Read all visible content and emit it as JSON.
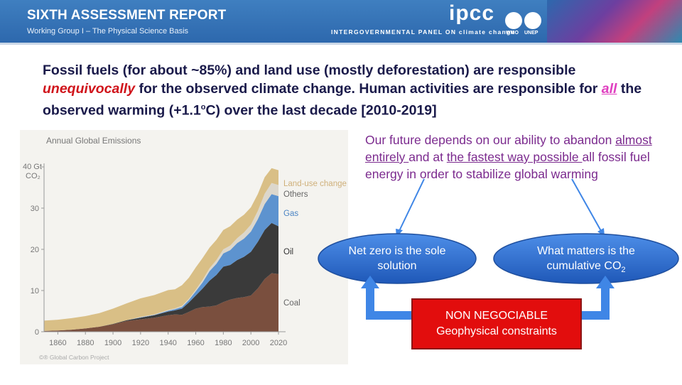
{
  "header": {
    "title": "SIXTH ASSESSMENT REPORT",
    "subtitle": "Working Group I – The Physical Science Basis",
    "logo": "ipcc",
    "tagline": "INTERGOVERNMENTAL PANEL ON climate change",
    "who": "WMO",
    "unep": "UNEP"
  },
  "headline": {
    "p1": "Fossil fuels (for about ~85%) and land use (mostly deforestation) are responsible ",
    "em1": "unequivocally",
    "p2": " for the observed climate change. Human activities are responsible for ",
    "em2": "all",
    "p3": " the observed warming (+1.1",
    "sup": "o",
    "p4": "C) over the last decade [2010-2019]"
  },
  "note": {
    "t1": "Our future depends on our ability to abandon ",
    "u1": "almost entirely ",
    "t2": "and at ",
    "u2": "the fastest way possible ",
    "t3": "all fossil fuel energy in order to stabilize global warming"
  },
  "ellipses": {
    "left": "Net zero is the sole solution",
    "right_a": "What matters is the cumulative CO",
    "right_sub": "2"
  },
  "constraint_box": {
    "line1": "NON NEGOCIABLE",
    "line2": "Geophysical constraints"
  },
  "colors": {
    "header_blue": "#2d68ad",
    "coal": "#7a4f3e",
    "oil": "#3a3a3a",
    "gas": "#5d93cf",
    "others": "#dcd7cc",
    "landuse": "#d9bf86",
    "ellipse": "#2e6fd0",
    "arrow": "#3f86e6",
    "red_box": "#e20d0d",
    "purple": "#7b2a8e"
  },
  "chart_data": {
    "type": "area",
    "title": "Annual Global Emissions",
    "ylabel": "40 Gt CO₂",
    "unit_top": "40 Gt",
    "unit_bottom": "CO₂",
    "ylim": [
      0,
      40
    ],
    "yticks": [
      0,
      10,
      20,
      30
    ],
    "xlim": [
      1850,
      2020
    ],
    "xticks": [
      1860,
      1880,
      1900,
      1920,
      1940,
      1960,
      1980,
      2000,
      2020
    ],
    "x": [
      1850,
      1860,
      1870,
      1880,
      1890,
      1900,
      1910,
      1920,
      1930,
      1940,
      1945,
      1950,
      1955,
      1960,
      1965,
      1970,
      1975,
      1980,
      1985,
      1990,
      1995,
      2000,
      2005,
      2010,
      2015,
      2020
    ],
    "stack_order": [
      "Coal",
      "Oil",
      "Gas",
      "Others",
      "Land-use change"
    ],
    "series": [
      {
        "name": "Coal",
        "values": [
          0.2,
          0.3,
          0.5,
          0.8,
          1.2,
          1.8,
          2.6,
          3.0,
          3.4,
          4.0,
          4.2,
          4.1,
          4.8,
          5.6,
          6.0,
          6.1,
          6.4,
          7.2,
          7.8,
          8.2,
          8.4,
          8.8,
          10.5,
          12.8,
          14.2,
          14.0
        ]
      },
      {
        "name": "Oil",
        "values": [
          0.0,
          0.0,
          0.0,
          0.0,
          0.0,
          0.1,
          0.2,
          0.4,
          0.6,
          0.9,
          1.0,
          1.5,
          2.3,
          3.2,
          4.5,
          6.3,
          7.4,
          8.6,
          8.4,
          9.2,
          9.8,
          10.6,
          11.3,
          11.9,
          12.2,
          11.6
        ]
      },
      {
        "name": "Gas",
        "values": [
          0.0,
          0.0,
          0.0,
          0.0,
          0.0,
          0.0,
          0.0,
          0.1,
          0.1,
          0.2,
          0.3,
          0.4,
          0.6,
          1.0,
          1.5,
          2.3,
          2.7,
          3.2,
          3.6,
          4.1,
          4.4,
          4.9,
          5.5,
          6.3,
          7.0,
          7.3
        ]
      },
      {
        "name": "Others",
        "values": [
          0.0,
          0.0,
          0.0,
          0.0,
          0.0,
          0.0,
          0.0,
          0.1,
          0.1,
          0.2,
          0.2,
          0.3,
          0.3,
          0.4,
          0.6,
          0.7,
          0.9,
          1.0,
          1.1,
          1.2,
          1.5,
          1.7,
          2.0,
          2.5,
          2.7,
          2.7
        ]
      },
      {
        "name": "Land-use change",
        "values": [
          2.5,
          2.6,
          2.8,
          3.0,
          3.3,
          3.7,
          4.1,
          4.5,
          4.7,
          4.8,
          4.6,
          5.0,
          5.1,
          5.4,
          5.3,
          5.0,
          4.9,
          4.7,
          4.7,
          4.5,
          4.3,
          4.2,
          4.1,
          4.0,
          3.6,
          3.6
        ]
      }
    ],
    "legend_placement": "right, inline labels",
    "credit": "©® Global Carbon Project",
    "grid": false
  }
}
